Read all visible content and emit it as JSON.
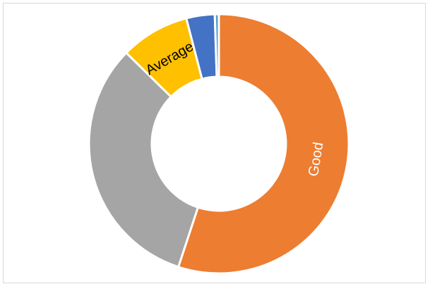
{
  "chart_data": {
    "type": "donut",
    "title": "",
    "legend": "none",
    "slices": [
      {
        "label": "Good",
        "value": 54.5,
        "color": "#ED7D31",
        "label_color": "#ffffff",
        "show_label": true
      },
      {
        "label": "",
        "value": 32.0,
        "color": "#A5A5A5",
        "label_color": "#000000",
        "show_label": false
      },
      {
        "label": "Average",
        "value": 8.5,
        "color": "#FFC000",
        "label_color": "#000000",
        "show_label": true
      },
      {
        "label": "",
        "value": 3.5,
        "color": "#4472C4",
        "label_color": "#000000",
        "show_label": false
      },
      {
        "label": "",
        "value": 0.5,
        "color": "#5B9BD5",
        "label_color": "#000000",
        "show_label": false
      }
    ]
  }
}
